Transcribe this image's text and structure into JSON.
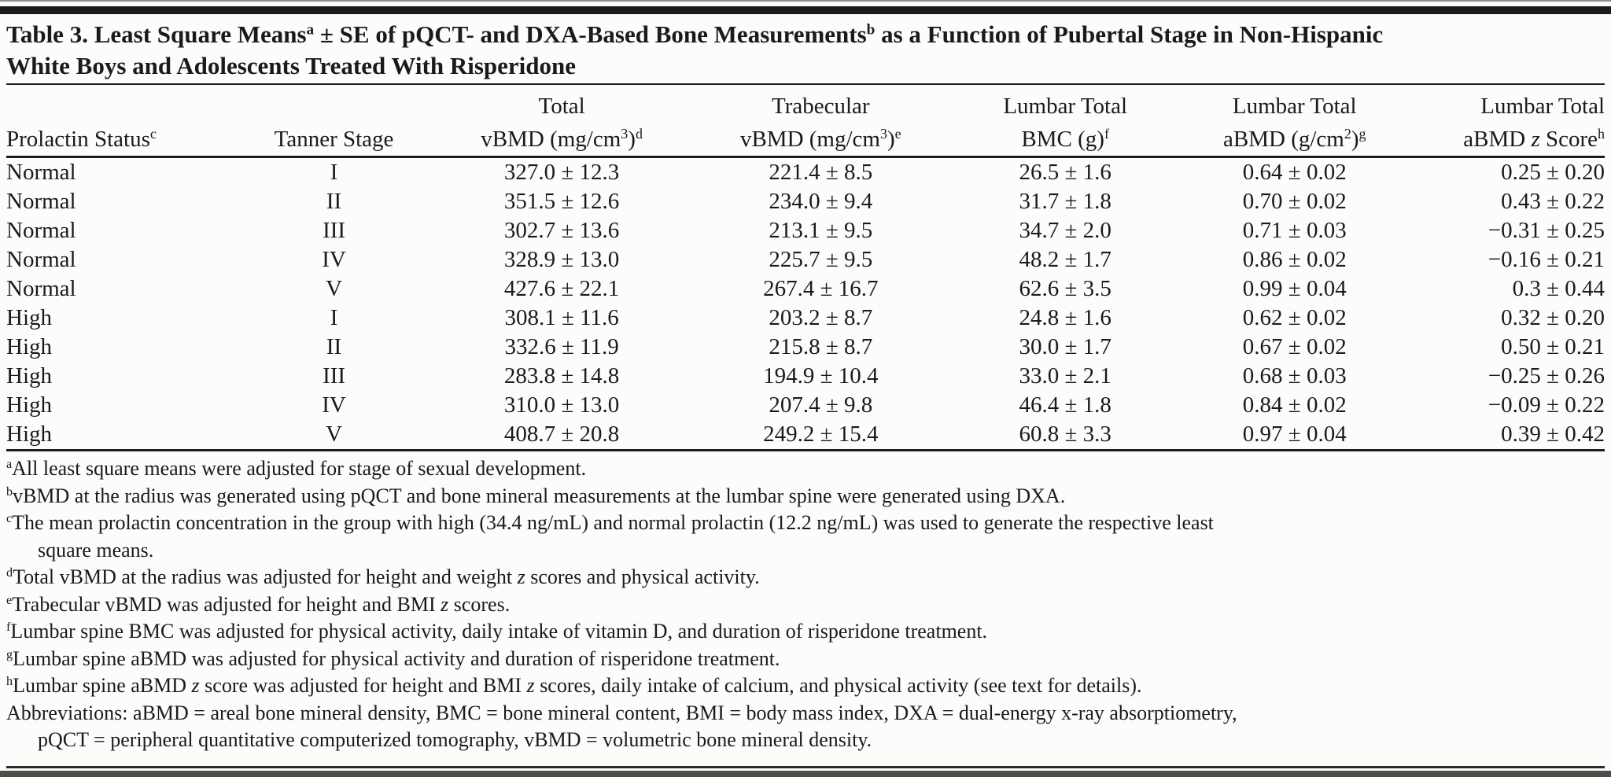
{
  "table": {
    "title_lines": [
      [
        {
          "t": "Table 3. Least Square Means"
        },
        {
          "sup": "a"
        },
        {
          "t": " ± SE of pQCT- and DXA-Based Bone Measurements"
        },
        {
          "sup": "b"
        },
        {
          "t": " as a Function of Pubertal Stage in Non-Hispanic"
        }
      ],
      [
        {
          "t": "White Boys and Adolescents Treated With Risperidone"
        }
      ]
    ],
    "columns": [
      {
        "id": "prolactin-status",
        "align": "left",
        "line1": [],
        "line2": [
          {
            "t": "Prolactin Status"
          },
          {
            "sup": "c"
          }
        ]
      },
      {
        "id": "tanner-stage",
        "align": "center",
        "line1": [],
        "line2": [
          {
            "t": "Tanner Stage"
          }
        ]
      },
      {
        "id": "total-vbmd",
        "align": "center",
        "line1": [
          {
            "t": "Total"
          }
        ],
        "line2": [
          {
            "t": "vBMD (mg/cm"
          },
          {
            "sup": "3"
          },
          {
            "t": ")"
          },
          {
            "sup": "d"
          }
        ]
      },
      {
        "id": "trabecular-vbmd",
        "align": "center",
        "line1": [
          {
            "t": "Trabecular"
          }
        ],
        "line2": [
          {
            "t": "vBMD (mg/cm"
          },
          {
            "sup": "3"
          },
          {
            "t": ")"
          },
          {
            "sup": "e"
          }
        ]
      },
      {
        "id": "lumbar-bmc",
        "align": "center",
        "line1": [
          {
            "t": "Lumbar Total"
          }
        ],
        "line2": [
          {
            "t": "BMC (g)"
          },
          {
            "sup": "f"
          }
        ]
      },
      {
        "id": "lumbar-abmd",
        "align": "center",
        "line1": [
          {
            "t": "Lumbar Total"
          }
        ],
        "line2": [
          {
            "t": "aBMD (g/cm"
          },
          {
            "sup": "2"
          },
          {
            "t": ")"
          },
          {
            "sup": "g"
          }
        ]
      },
      {
        "id": "lumbar-abmd-z",
        "align": "right",
        "line1": [
          {
            "t": "Lumbar Total"
          }
        ],
        "line2": [
          {
            "t": "aBMD "
          },
          {
            "i": "z"
          },
          {
            "t": " Score"
          },
          {
            "sup": "h"
          }
        ]
      }
    ],
    "rows": [
      [
        "Normal",
        "I",
        "327.0 ± 12.3",
        "221.4 ± 8.5",
        "26.5 ± 1.6",
        "0.64 ± 0.02",
        "0.25 ± 0.20"
      ],
      [
        "Normal",
        "II",
        "351.5 ± 12.6",
        "234.0 ± 9.4",
        "31.7 ± 1.8",
        "0.70 ± 0.02",
        "0.43 ± 0.22"
      ],
      [
        "Normal",
        "III",
        "302.7 ± 13.6",
        "213.1 ± 9.5",
        "34.7 ± 2.0",
        "0.71 ± 0.03",
        "−0.31 ± 0.25"
      ],
      [
        "Normal",
        "IV",
        "328.9 ± 13.0",
        "225.7 ± 9.5",
        "48.2 ± 1.7",
        "0.86 ± 0.02",
        "−0.16 ± 0.21"
      ],
      [
        "Normal",
        "V",
        "427.6 ± 22.1",
        "267.4 ± 16.7",
        "62.6 ± 3.5",
        "0.99 ± 0.04",
        "0.3 ± 0.44"
      ],
      [
        "High",
        "I",
        "308.1 ± 11.6",
        "203.2 ± 8.7",
        "24.8 ± 1.6",
        "0.62 ± 0.02",
        "0.32 ± 0.20"
      ],
      [
        "High",
        "II",
        "332.6 ± 11.9",
        "215.8 ± 8.7",
        "30.0 ± 1.7",
        "0.67 ± 0.02",
        "0.50 ± 0.21"
      ],
      [
        "High",
        "III",
        "283.8 ± 14.8",
        "194.9 ± 10.4",
        "33.0 ± 2.1",
        "0.68 ± 0.03",
        "−0.25 ± 0.26"
      ],
      [
        "High",
        "IV",
        "310.0 ± 13.0",
        "207.4 ± 9.8",
        "46.4 ± 1.8",
        "0.84 ± 0.02",
        "−0.09 ± 0.22"
      ],
      [
        "High",
        "V",
        "408.7 ± 20.8",
        "249.2 ± 15.4",
        "60.8 ± 3.3",
        "0.97 ± 0.04",
        "0.39 ± 0.42"
      ]
    ],
    "footnotes": [
      {
        "sup": "a",
        "lines": [
          [
            {
              "t": "All least square means were adjusted for stage of sexual development."
            }
          ]
        ]
      },
      {
        "sup": "b",
        "lines": [
          [
            {
              "t": "vBMD at the radius was generated using pQCT and bone mineral measurements at the lumbar spine were generated using DXA."
            }
          ]
        ]
      },
      {
        "sup": "c",
        "lines": [
          [
            {
              "t": "The mean prolactin concentration in the group with high (34.4 ng/mL) and normal prolactin (12.2 ng/mL) was used to generate the respective least"
            }
          ],
          [
            {
              "t": "square means."
            }
          ]
        ]
      },
      {
        "sup": "d",
        "lines": [
          [
            {
              "t": "Total vBMD at the radius was adjusted for height and weight "
            },
            {
              "i": "z"
            },
            {
              "t": " scores and physical activity."
            }
          ]
        ]
      },
      {
        "sup": "e",
        "lines": [
          [
            {
              "t": "Trabecular vBMD was adjusted for height and BMI "
            },
            {
              "i": "z"
            },
            {
              "t": " scores."
            }
          ]
        ]
      },
      {
        "sup": "f",
        "lines": [
          [
            {
              "t": "Lumbar spine BMC was adjusted for physical activity, daily intake of vitamin D, and duration of risperidone treatment."
            }
          ]
        ]
      },
      {
        "sup": "g",
        "lines": [
          [
            {
              "t": "Lumbar spine aBMD was adjusted for physical activity and duration of risperidone treatment."
            }
          ]
        ]
      },
      {
        "sup": "h",
        "lines": [
          [
            {
              "t": "Lumbar spine aBMD "
            },
            {
              "i": "z"
            },
            {
              "t": " score was adjusted for height and BMI "
            },
            {
              "i": "z"
            },
            {
              "t": " scores, daily intake of calcium, and physical activity (see text for details)."
            }
          ]
        ]
      },
      {
        "sup": "",
        "lines": [
          [
            {
              "t": "Abbreviations: aBMD = areal bone mineral density, BMC = bone mineral content, BMI = body mass index, DXA = dual-energy x-ray absorptiometry,"
            }
          ],
          [
            {
              "t": "pQCT = peripheral quantitative computerized tomography, vBMD = volumetric bone mineral density."
            }
          ]
        ]
      }
    ]
  }
}
